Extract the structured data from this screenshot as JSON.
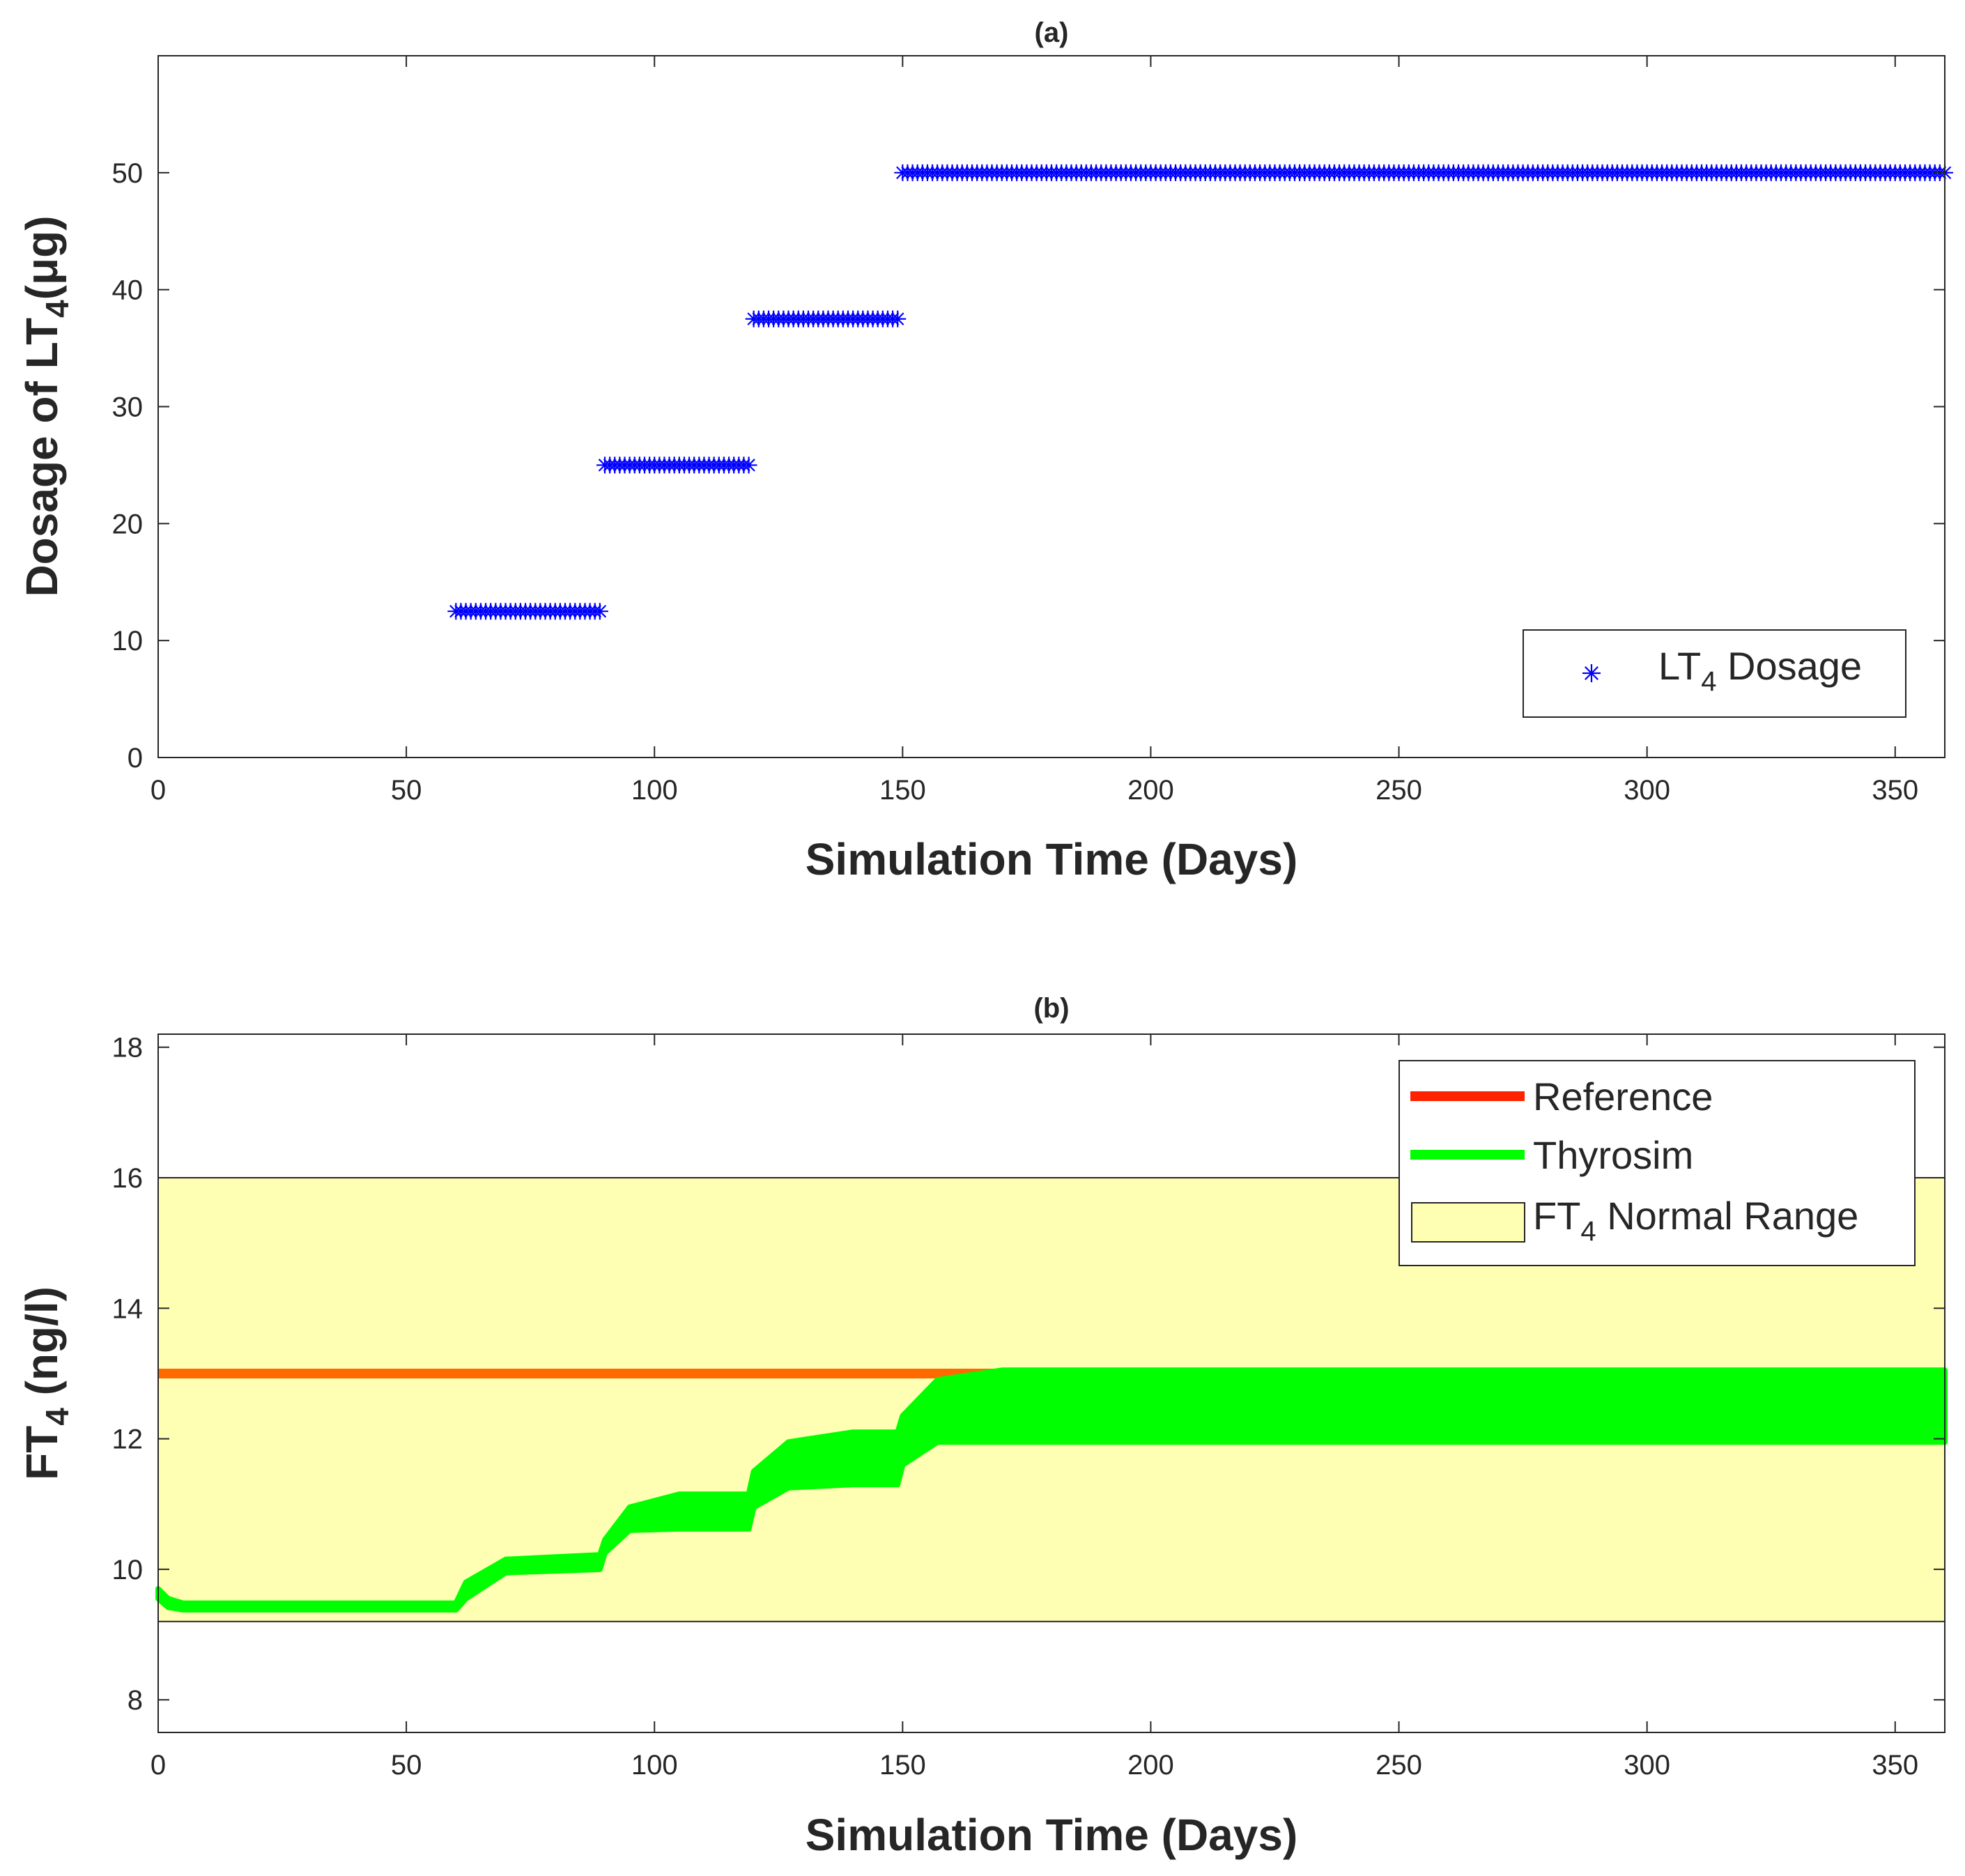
{
  "chart_data": [
    {
      "panel": "a",
      "type": "scatter",
      "title": "(a)",
      "xlabel": "Simulation Time (Days)",
      "ylabel": {
        "prefix": "Dosage of LT",
        "sub": "4",
        "suffix": "(μg)"
      },
      "xlim": [
        0,
        360
      ],
      "ylim": [
        0,
        60
      ],
      "xticks": [
        0,
        50,
        100,
        150,
        200,
        250,
        300,
        350
      ],
      "yticks": [
        0,
        10,
        20,
        30,
        40,
        50
      ],
      "legend": {
        "location": "bottom-right",
        "entries": [
          {
            "label_prefix": "LT",
            "label_sub": "4",
            "label_suffix": " Dosage",
            "marker": "asterisk",
            "color": "#0000FF"
          }
        ]
      },
      "series": [
        {
          "name": "LT4 Dosage",
          "color": "#0000FF",
          "marker": "asterisk",
          "segments": [
            {
              "x_start": 60,
              "x_end": 89,
              "value": 12.5
            },
            {
              "x_start": 90,
              "x_end": 119,
              "value": 25
            },
            {
              "x_start": 120,
              "x_end": 149,
              "value": 37.5
            },
            {
              "x_start": 150,
              "x_end": 360,
              "value": 50
            }
          ]
        }
      ]
    },
    {
      "panel": "b",
      "type": "line",
      "title": "(b)",
      "xlabel": "Simulation Time (Days)",
      "ylabel": {
        "prefix": "FT",
        "sub": "4",
        "suffix": " (ng/l)"
      },
      "xlim": [
        0,
        360
      ],
      "ylim": [
        7.5,
        18.2
      ],
      "xticks": [
        0,
        50,
        100,
        150,
        200,
        250,
        300,
        350
      ],
      "yticks": [
        8,
        10,
        12,
        14,
        16,
        18
      ],
      "normal_range": {
        "low": 9.2,
        "high": 16,
        "color": "#FFFFB3"
      },
      "legend": {
        "location": "top-right",
        "entries": [
          {
            "label_prefix": "Reference",
            "label_sub": "",
            "label_suffix": "",
            "kind": "line",
            "color": "#FF2200"
          },
          {
            "label_prefix": "Thyrosim",
            "label_sub": "",
            "label_suffix": "",
            "kind": "line",
            "color": "#00FF00"
          },
          {
            "label_prefix": "FT",
            "label_sub": "4",
            "label_suffix": " Normal Range",
            "kind": "patch",
            "color": "#FFFFB3"
          }
        ]
      },
      "series": [
        {
          "name": "Reference",
          "color": "#FF6A00",
          "x": [
            0,
            360
          ],
          "y": [
            13,
            13
          ]
        },
        {
          "name": "Thyrosim",
          "color": "#00FF00",
          "band_x": [
            0,
            2,
            5,
            60,
            62,
            70,
            89,
            90,
            95,
            105,
            119,
            120,
            127,
            140,
            149,
            150,
            157,
            170,
            200,
            360
          ],
          "band_upper": [
            9.7,
            9.55,
            9.48,
            9.48,
            9.8,
            10.15,
            10.22,
            10.45,
            10.95,
            11.15,
            11.15,
            11.5,
            11.95,
            12.1,
            12.1,
            12.35,
            12.9,
            13.05,
            13.05,
            13.05
          ],
          "band_lower": [
            9.55,
            9.42,
            9.38,
            9.38,
            9.55,
            9.95,
            10.0,
            10.25,
            10.6,
            10.62,
            10.62,
            10.95,
            11.25,
            11.3,
            11.3,
            11.6,
            11.95,
            11.95,
            11.95,
            11.95
          ]
        }
      ]
    }
  ]
}
